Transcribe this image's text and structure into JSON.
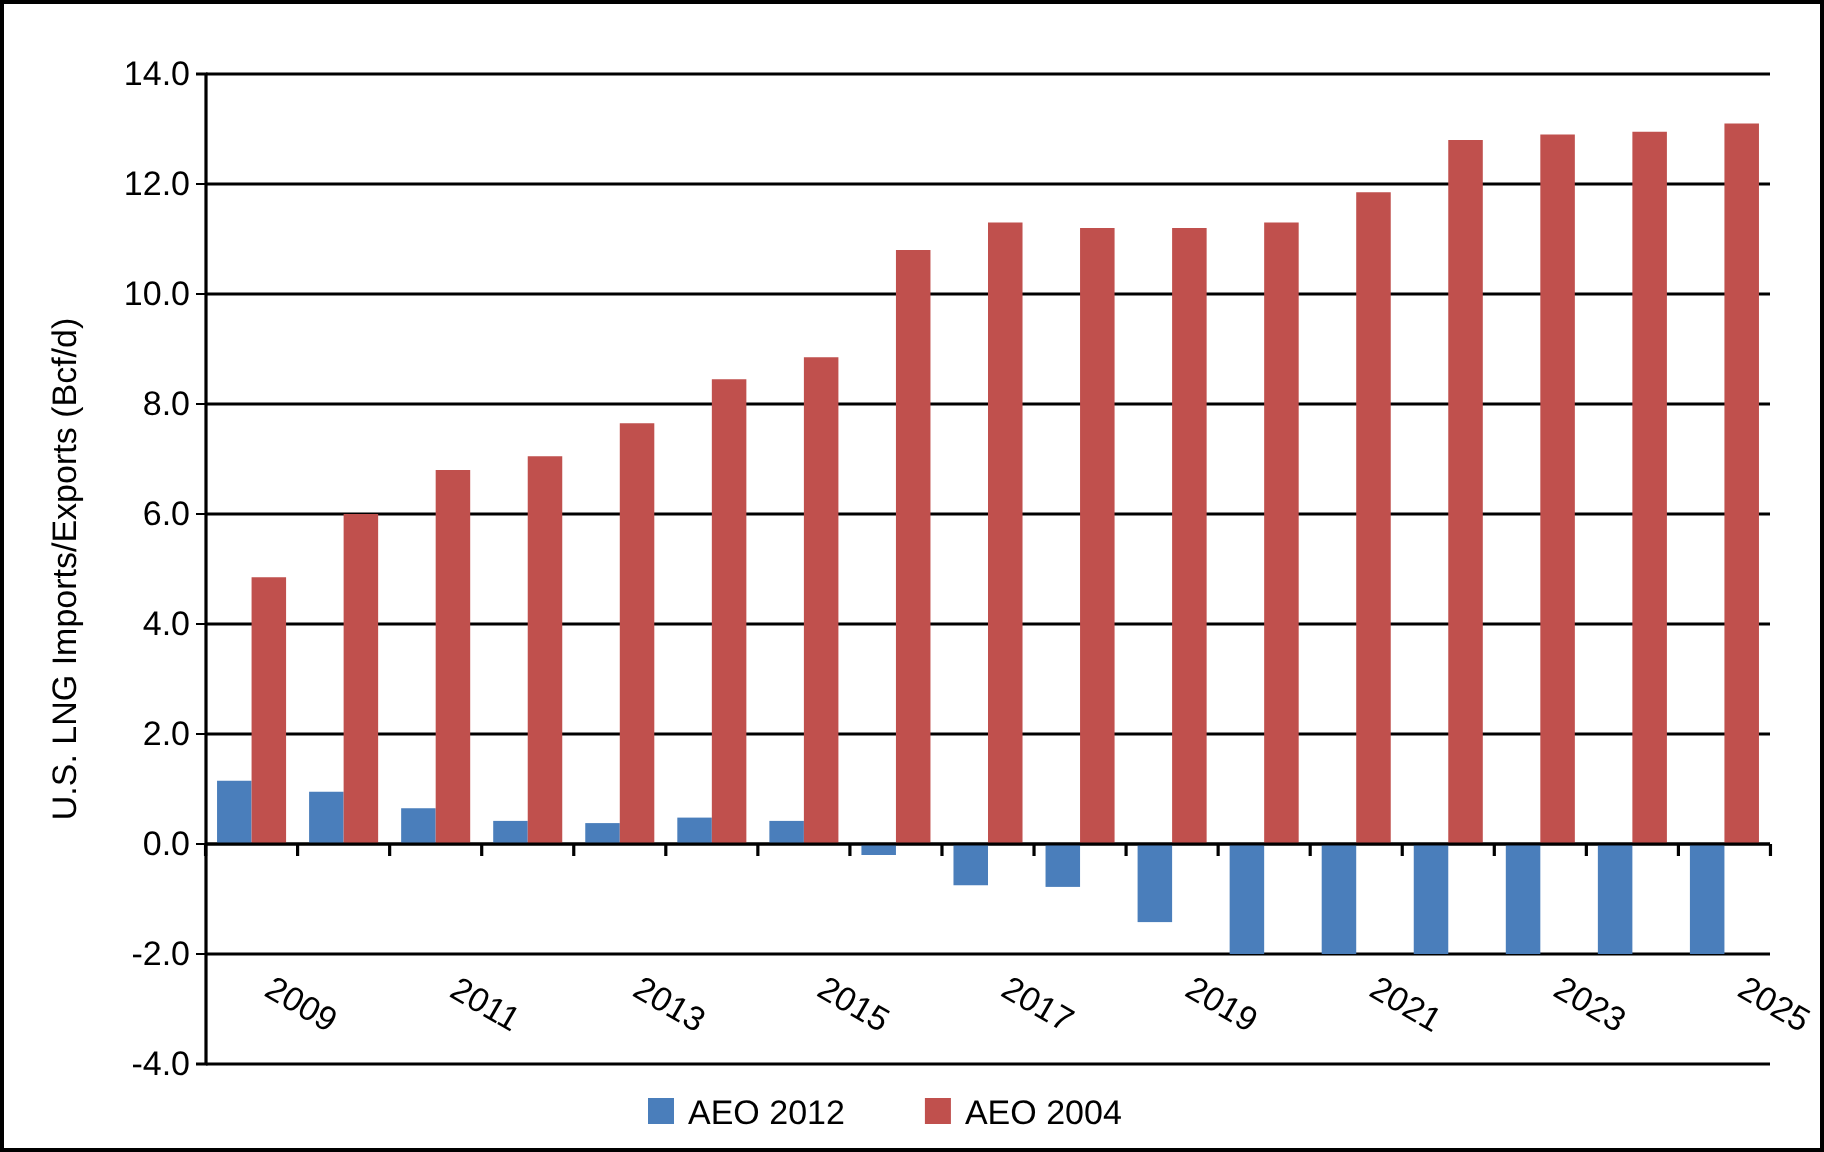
{
  "chart_data": {
    "type": "bar",
    "ylabel": "U.S. LNG Imports/Exports (Bcf/d)",
    "categories": [
      "2009",
      null,
      "2011",
      null,
      "2013",
      null,
      "2015",
      null,
      "2017",
      null,
      "2019",
      null,
      "2021",
      null,
      "2023",
      null,
      "2025"
    ],
    "series": [
      {
        "name": "AEO 2012",
        "color": "#4a7ebb",
        "values": [
          1.15,
          0.95,
          0.65,
          0.42,
          0.38,
          0.48,
          0.42,
          -0.2,
          -0.75,
          -0.78,
          -1.42,
          -2.0,
          -2.0,
          -2.0,
          -2.0,
          -2.0,
          -2.0
        ]
      },
      {
        "name": "AEO 2004",
        "color": "#c0504d",
        "values": [
          4.85,
          6.0,
          6.8,
          7.05,
          7.65,
          8.45,
          8.85,
          10.8,
          11.3,
          11.2,
          11.2,
          11.3,
          11.85,
          12.8,
          12.9,
          12.95,
          13.1
        ]
      }
    ],
    "ylim": [
      -4,
      14
    ],
    "yticks": [
      {
        "value": -4,
        "label": "-4.0"
      },
      {
        "value": -2,
        "label": "-2.0"
      },
      {
        "value": 0,
        "label": "0.0"
      },
      {
        "value": 2,
        "label": "2.0"
      },
      {
        "value": 4,
        "label": "4.0"
      },
      {
        "value": 6,
        "label": "6.0"
      },
      {
        "value": 8,
        "label": "8.0"
      },
      {
        "value": 10,
        "label": "10.0"
      },
      {
        "value": 12,
        "label": "12.0"
      },
      {
        "value": 14,
        "label": "14.0"
      }
    ],
    "grid": "y",
    "legend": "bottom"
  }
}
